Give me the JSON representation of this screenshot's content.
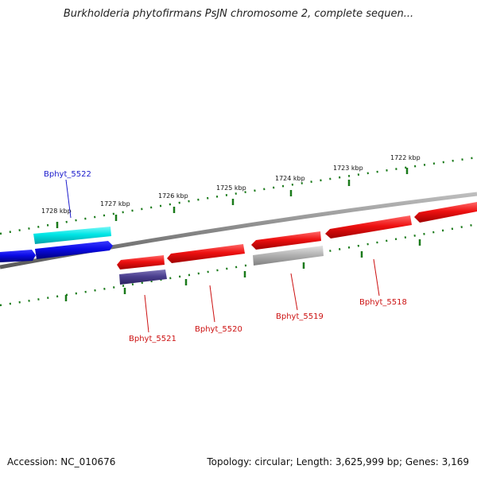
{
  "title": "Burkholderia phytofirmans PsJN chromosome 2, complete sequen...",
  "ruler": {
    "ticks": [
      "1722 kbp",
      "1723 kbp",
      "1724 kbp",
      "1725 kbp",
      "1726 kbp",
      "1727 kbp",
      "1728 kbp"
    ],
    "tick_color": "#1a7a1a"
  },
  "backbone_color": "#888888",
  "genes": [
    {
      "id": "Bphyt_5522",
      "color": "#00e6e6",
      "label_color": "#1a1acc"
    },
    {
      "id": "Bphyt_5521",
      "color": "#4b3f8f",
      "label_color": "#cc1111"
    },
    {
      "id": "Bphyt_5520",
      "color": "#ee1111",
      "label_color": "#cc1111"
    },
    {
      "id": "Bphyt_5519",
      "color": "#b4b4b4",
      "label_color": "#cc1111"
    },
    {
      "id": "Bphyt_5518",
      "color": "#ee1111",
      "label_color": "#cc1111"
    }
  ],
  "other_feature_colors": {
    "forward_strand": "#0a0ae6",
    "reverse_strand": "#ee1111"
  },
  "footer": {
    "accession": "Accession: NC_010676",
    "summary": "Topology: circular; Length: 3,625,999 bp; Genes: 3,169"
  }
}
